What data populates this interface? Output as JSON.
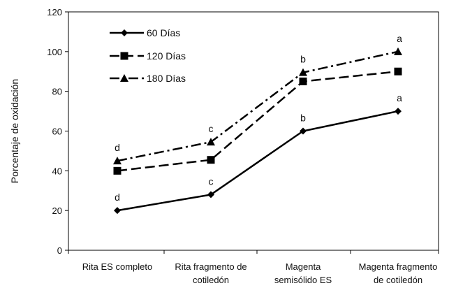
{
  "chart_data": {
    "type": "line",
    "title": "",
    "xlabel": "",
    "ylabel": "Porcentaje  de oxidación",
    "ylim": [
      0,
      120
    ],
    "yticks": [
      0,
      20,
      40,
      60,
      80,
      100,
      120
    ],
    "grid": false,
    "legend_position": "top-left",
    "categories": [
      [
        "Rita ES completo"
      ],
      [
        "Rita fragmento de",
        "cotiledón"
      ],
      [
        "Magenta",
        "semisólido ES"
      ],
      [
        "Magenta fragmento",
        "de cotiledón"
      ]
    ],
    "series": [
      {
        "name": "60 Días",
        "values": [
          20,
          28,
          60,
          70
        ],
        "marker": "diamond",
        "dash": "solid",
        "color": "#000000",
        "annotations": [
          "d",
          "c",
          "b",
          "a"
        ]
      },
      {
        "name": "120 Días",
        "values": [
          40,
          45.5,
          85,
          90
        ],
        "marker": "square",
        "dash": "dash",
        "color": "#000000",
        "annotations": [
          "",
          "",
          "",
          ""
        ]
      },
      {
        "name": "180 Días",
        "values": [
          45,
          54.5,
          89.5,
          100
        ],
        "marker": "triangle",
        "dash": "dashdot",
        "color": "#000000",
        "annotations": [
          "d",
          "c",
          "b",
          "a"
        ]
      }
    ]
  }
}
